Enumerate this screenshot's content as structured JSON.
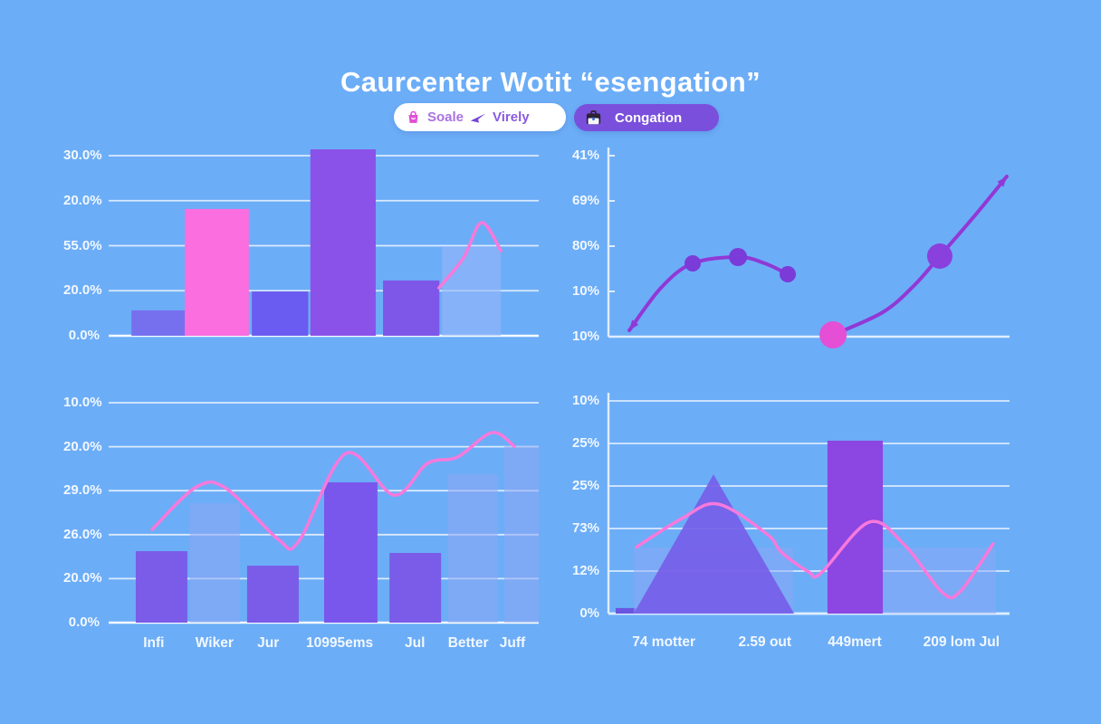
{
  "page": {
    "title": "Caurcenter Wotit “esengation”",
    "background": "#6cadf7"
  },
  "legend": {
    "pill1": {
      "items": [
        {
          "icon": "bag-icon",
          "label": "Soale",
          "color": "#a873e0",
          "icon_color": "#e14fd6"
        },
        {
          "icon": "send-arrow-icon",
          "label": "Virely",
          "color": "#8a5ce0",
          "icon_color": "#7445d8"
        }
      ],
      "background": "#ffffff"
    },
    "pill2": {
      "icon": "briefcase-icon",
      "label": "Congation",
      "background": "#7a4fdc",
      "color": "#ffffff"
    }
  },
  "colors": {
    "background": "#6cadf7",
    "gridline": "rgba(255,255,255,0.75)",
    "baseline": "rgba(255,255,255,0.95)",
    "axis": "#dfeefc",
    "tick_label": "#f2f8ff",
    "pink_line": "#f879dc",
    "purple_line": "#9138d6",
    "pink_bar": "#fa6ee0",
    "purple_bar": "#8b52ea",
    "translucent_bar": "rgba(142,168,246,0.55)"
  },
  "chart_data": [
    {
      "id": "tl",
      "type": "bar",
      "title": "",
      "y_tick_labels": [
        "30.0%",
        "20.0%",
        "55.0%",
        "20.0%",
        "0.0%"
      ],
      "layout": {
        "gridlines": true,
        "grid_on": true,
        "legend_position": "none"
      },
      "bars": [
        {
          "x": 0.053,
          "w": 0.126,
          "v": 0.141,
          "color": "#7770ee"
        },
        {
          "x": 0.177,
          "w": 0.149,
          "v": 0.704,
          "color": "#fa6ee0"
        },
        {
          "x": 0.333,
          "w": 0.131,
          "v": 0.246,
          "color": "#6a5cf0"
        },
        {
          "x": 0.469,
          "w": 0.152,
          "v": 1.035,
          "color": "#8b52ea"
        },
        {
          "x": 0.638,
          "w": 0.131,
          "v": 0.307,
          "color": "#7e57e8"
        },
        {
          "x": 0.775,
          "w": 0.137,
          "v": 0.497,
          "color": "rgba(150,181,248,0.6)"
        }
      ],
      "lines": [
        {
          "color": "#f879dc",
          "width": 3.5,
          "points": [
            [
              0.768,
              0.266
            ],
            [
              0.825,
              0.432
            ],
            [
              0.867,
              0.628
            ],
            [
              0.912,
              0.472
            ]
          ]
        }
      ]
    },
    {
      "id": "tr",
      "type": "line",
      "title": "",
      "y_tick_labels": [
        "41%",
        "69%",
        "80%",
        "10%",
        "10%"
      ],
      "layout": {
        "gridlines": false,
        "y_axis": true,
        "x_axis": true,
        "ticks": true,
        "legend_position": "none"
      },
      "lines": [
        {
          "color": "#9138d6",
          "width": 4,
          "arrow_start": true,
          "points": [
            [
              0.052,
              0.035
            ],
            [
              0.131,
              0.27
            ],
            [
              0.21,
              0.405
            ],
            [
              0.323,
              0.44
            ],
            [
              0.39,
              0.405
            ],
            [
              0.447,
              0.345
            ]
          ],
          "dots": [
            {
              "i": 2,
              "r": 9,
              "color": "#7b3bd8"
            },
            {
              "i": 3,
              "r": 10,
              "color": "#7b3bd8"
            },
            {
              "i": 5,
              "r": 9,
              "color": "#7b3bd8"
            }
          ]
        },
        {
          "color": "#9138d6",
          "width": 4,
          "arrow_end": true,
          "points": [
            [
              0.56,
              0.01
            ],
            [
              0.684,
              0.135
            ],
            [
              0.763,
              0.285
            ],
            [
              0.826,
              0.445
            ],
            [
              0.91,
              0.66
            ],
            [
              0.993,
              0.885
            ]
          ],
          "dots": [
            {
              "i": 0,
              "r": 15,
              "color": "#e44fd6"
            },
            {
              "i": 3,
              "r": 14,
              "color": "#8a40dd"
            }
          ]
        }
      ]
    },
    {
      "id": "bl",
      "type": "bar",
      "title": "",
      "y_tick_labels": [
        "10.0%",
        "20.0%",
        "29.0%",
        "26.0%",
        "20.0%",
        "0.0%"
      ],
      "x_tick_labels": [
        "Infi",
        "Wiker",
        "Jur",
        "10995ems",
        "Jul",
        "Better",
        "Juff"
      ],
      "x_tick_pos": [
        0.105,
        0.246,
        0.371,
        0.537,
        0.712,
        0.836,
        0.939
      ],
      "layout": {
        "gridlines": true,
        "grid_on": true,
        "legend_position": "none"
      },
      "bars": [
        {
          "x": 0.063,
          "w": 0.12,
          "v": 0.325,
          "color": "#7a5ce8"
        },
        {
          "x": 0.189,
          "w": 0.116,
          "v": 0.543,
          "color": "rgba(142,166,244,0.55)"
        },
        {
          "x": 0.322,
          "w": 0.12,
          "v": 0.259,
          "color": "#7a5ce8"
        },
        {
          "x": 0.501,
          "w": 0.124,
          "v": 0.638,
          "color": "#7956ec"
        },
        {
          "x": 0.653,
          "w": 0.12,
          "v": 0.317,
          "color": "#7a5ce8"
        },
        {
          "x": 0.789,
          "w": 0.116,
          "v": 0.675,
          "color": "rgba(142,166,244,0.55)"
        },
        {
          "x": 0.92,
          "w": 0.08,
          "v": 0.802,
          "color": "rgba(142,166,244,0.55)"
        }
      ],
      "lines": [
        {
          "color": "#f879dc",
          "width": 3.5,
          "points": [
            [
              0.101,
              0.424
            ],
            [
              0.204,
              0.617
            ],
            [
              0.274,
              0.609
            ],
            [
              0.394,
              0.379
            ],
            [
              0.442,
              0.37
            ],
            [
              0.552,
              0.77
            ],
            [
              0.663,
              0.58
            ],
            [
              0.741,
              0.724
            ],
            [
              0.811,
              0.753
            ],
            [
              0.891,
              0.864
            ],
            [
              0.943,
              0.802
            ]
          ]
        }
      ]
    },
    {
      "id": "br",
      "type": "area",
      "title": "",
      "y_tick_labels": [
        "10%",
        "25%",
        "25%",
        "73%",
        "12%",
        "0%"
      ],
      "x_tick_labels": [
        "74 motter",
        "2.59 out",
        "449mert",
        "209 lom Jul"
      ],
      "x_tick_pos": [
        0.138,
        0.39,
        0.614,
        0.88
      ],
      "layout": {
        "gridlines": true,
        "y_axis": true,
        "x_axis": true,
        "legend_position": "none"
      },
      "bars": [
        {
          "x": 0.018,
          "w": 0.05,
          "v": 0.026,
          "color": "#6a55e0"
        },
        {
          "x": 0.063,
          "w": 0.397,
          "v": 0.31,
          "color": "rgba(140,168,246,0.5)"
        },
        {
          "x": 0.546,
          "w": 0.138,
          "v": 0.813,
          "color": "#8c46e2"
        },
        {
          "x": 0.684,
          "w": 0.282,
          "v": 0.31,
          "color": "rgba(140,168,246,0.5)"
        }
      ],
      "triangles": [
        {
          "x1": 0.063,
          "xp": 0.262,
          "vp": 0.655,
          "x2": 0.463,
          "color": "rgba(117,94,232,0.92)"
        }
      ],
      "lines": [
        {
          "color": "#f879dc",
          "width": 3.5,
          "points": [
            [
              0.07,
              0.313
            ],
            [
              0.183,
              0.447
            ],
            [
              0.273,
              0.515
            ],
            [
              0.395,
              0.374
            ],
            [
              0.431,
              0.289
            ],
            [
              0.499,
              0.196
            ],
            [
              0.53,
              0.191
            ],
            [
              0.65,
              0.43
            ],
            [
              0.74,
              0.319
            ],
            [
              0.831,
              0.102
            ],
            [
              0.876,
              0.102
            ],
            [
              0.959,
              0.328
            ]
          ]
        }
      ]
    }
  ]
}
